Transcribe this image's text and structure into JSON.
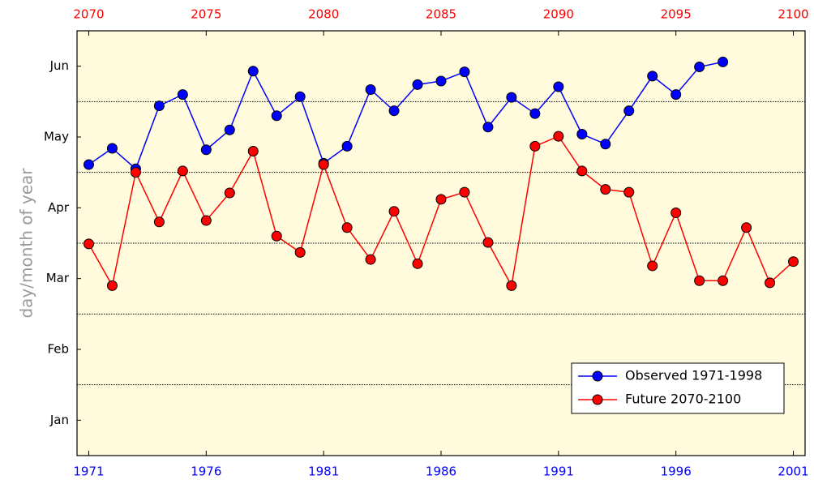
{
  "chart_data": {
    "type": "line",
    "y_label": "day/month of year",
    "xlim": [
      1970.5,
      2001.5
    ],
    "xticks": [
      1971,
      1976,
      1981,
      1986,
      1991,
      1996,
      2001
    ],
    "xtick_color": "#0000ff",
    "x2lim": [
      2069.5,
      2100.5
    ],
    "x2ticks": [
      2070,
      2075,
      2080,
      2085,
      2090,
      2095,
      2100
    ],
    "x2tick_color": "#ff0000",
    "ylim": [
      0,
      6
    ],
    "yticks": [
      {
        "value": 0.5,
        "label": "Jan"
      },
      {
        "value": 1.5,
        "label": "Feb"
      },
      {
        "value": 2.5,
        "label": "Mar"
      },
      {
        "value": 3.5,
        "label": "Apr"
      },
      {
        "value": 4.5,
        "label": "May"
      },
      {
        "value": 5.5,
        "label": "Jun"
      }
    ],
    "grid_lines": [
      1,
      2,
      3,
      4,
      5
    ],
    "legend": "lower right",
    "series": [
      {
        "name": "Observed 1971-1998",
        "color": "#0000ff",
        "x": [
          1971,
          1972,
          1973,
          1974,
          1975,
          1976,
          1977,
          1978,
          1979,
          1980,
          1981,
          1982,
          1983,
          1984,
          1985,
          1986,
          1987,
          1988,
          1989,
          1990,
          1991,
          1992,
          1993,
          1994,
          1995,
          1996,
          1997,
          1998
        ],
        "values": [
          4.11,
          4.34,
          4.05,
          4.94,
          5.1,
          4.32,
          4.6,
          5.43,
          4.8,
          5.07,
          4.13,
          4.37,
          5.17,
          4.87,
          5.24,
          5.29,
          5.42,
          4.64,
          5.06,
          4.83,
          5.21,
          4.54,
          4.4,
          4.87,
          5.36,
          5.1,
          5.49,
          5.56
        ]
      },
      {
        "name": "Future 2070-2100",
        "color": "#ff0000",
        "axis": "x2",
        "x": [
          2070,
          2071,
          2072,
          2073,
          2074,
          2075,
          2076,
          2077,
          2078,
          2079,
          2080,
          2081,
          2082,
          2083,
          2084,
          2085,
          2086,
          2087,
          2088,
          2089,
          2090,
          2091,
          2092,
          2093,
          2094,
          2095,
          2096,
          2097,
          2098,
          2099,
          2100
        ],
        "values": [
          2.99,
          2.4,
          4.0,
          3.3,
          4.02,
          3.32,
          3.71,
          4.3,
          3.1,
          2.87,
          4.11,
          3.22,
          2.77,
          3.45,
          2.71,
          3.62,
          3.72,
          3.01,
          2.4,
          4.37,
          4.51,
          4.02,
          3.76,
          3.72,
          2.68,
          3.43,
          2.47,
          2.47,
          3.22,
          2.44,
          2.74
        ]
      }
    ]
  }
}
